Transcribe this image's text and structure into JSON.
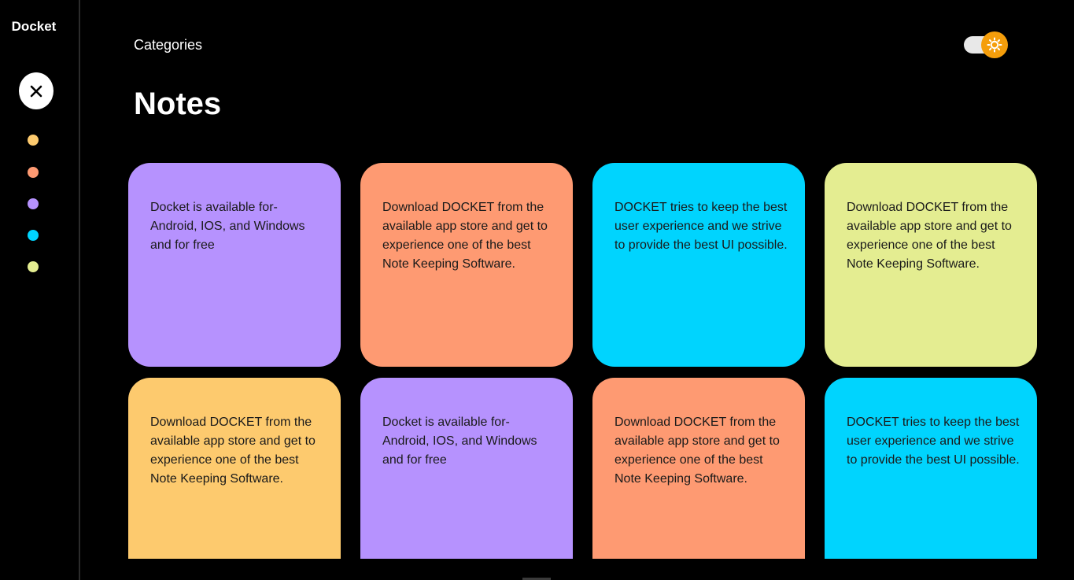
{
  "sidebar": {
    "brand": "Docket",
    "swatches": [
      {
        "name": "yellow",
        "color": "#fdca6e"
      },
      {
        "name": "orange",
        "color": "#fe9a72"
      },
      {
        "name": "purple",
        "color": "#b692fe"
      },
      {
        "name": "cyan",
        "color": "#00d4fe"
      },
      {
        "name": "lime",
        "color": "#e4ed91"
      }
    ]
  },
  "header": {
    "categories_label": "Categories",
    "title": "Notes",
    "theme_toggle_color": "#f59e0b"
  },
  "notes": [
    {
      "text": "Docket is available for-Android, IOS, and Windows and for free",
      "color": "#b692fe"
    },
    {
      "text": "Download DOCKET from the available app store and get to experience one of the best Note Keeping Software.",
      "color": "#fe9a72"
    },
    {
      "text": "DOCKET tries to keep the best user experience and we strive to provide the best UI possible.",
      "color": "#00d4fe"
    },
    {
      "text": "Download DOCKET from the available app store and get to experience one of the best Note Keeping Software.",
      "color": "#e4ed91"
    },
    {
      "text": "Download DOCKET from the available app store and get to experience one of the best Note Keeping Software.",
      "color": "#fdca6e"
    },
    {
      "text": "Docket is available for-Android, IOS, and Windows and for free",
      "color": "#b692fe"
    },
    {
      "text": "Download DOCKET from the available app store and get to experience one of the best Note Keeping Software.",
      "color": "#fe9a72"
    },
    {
      "text": "DOCKET tries to keep the best user experience and we strive to provide the best UI possible.",
      "color": "#00d4fe"
    }
  ]
}
